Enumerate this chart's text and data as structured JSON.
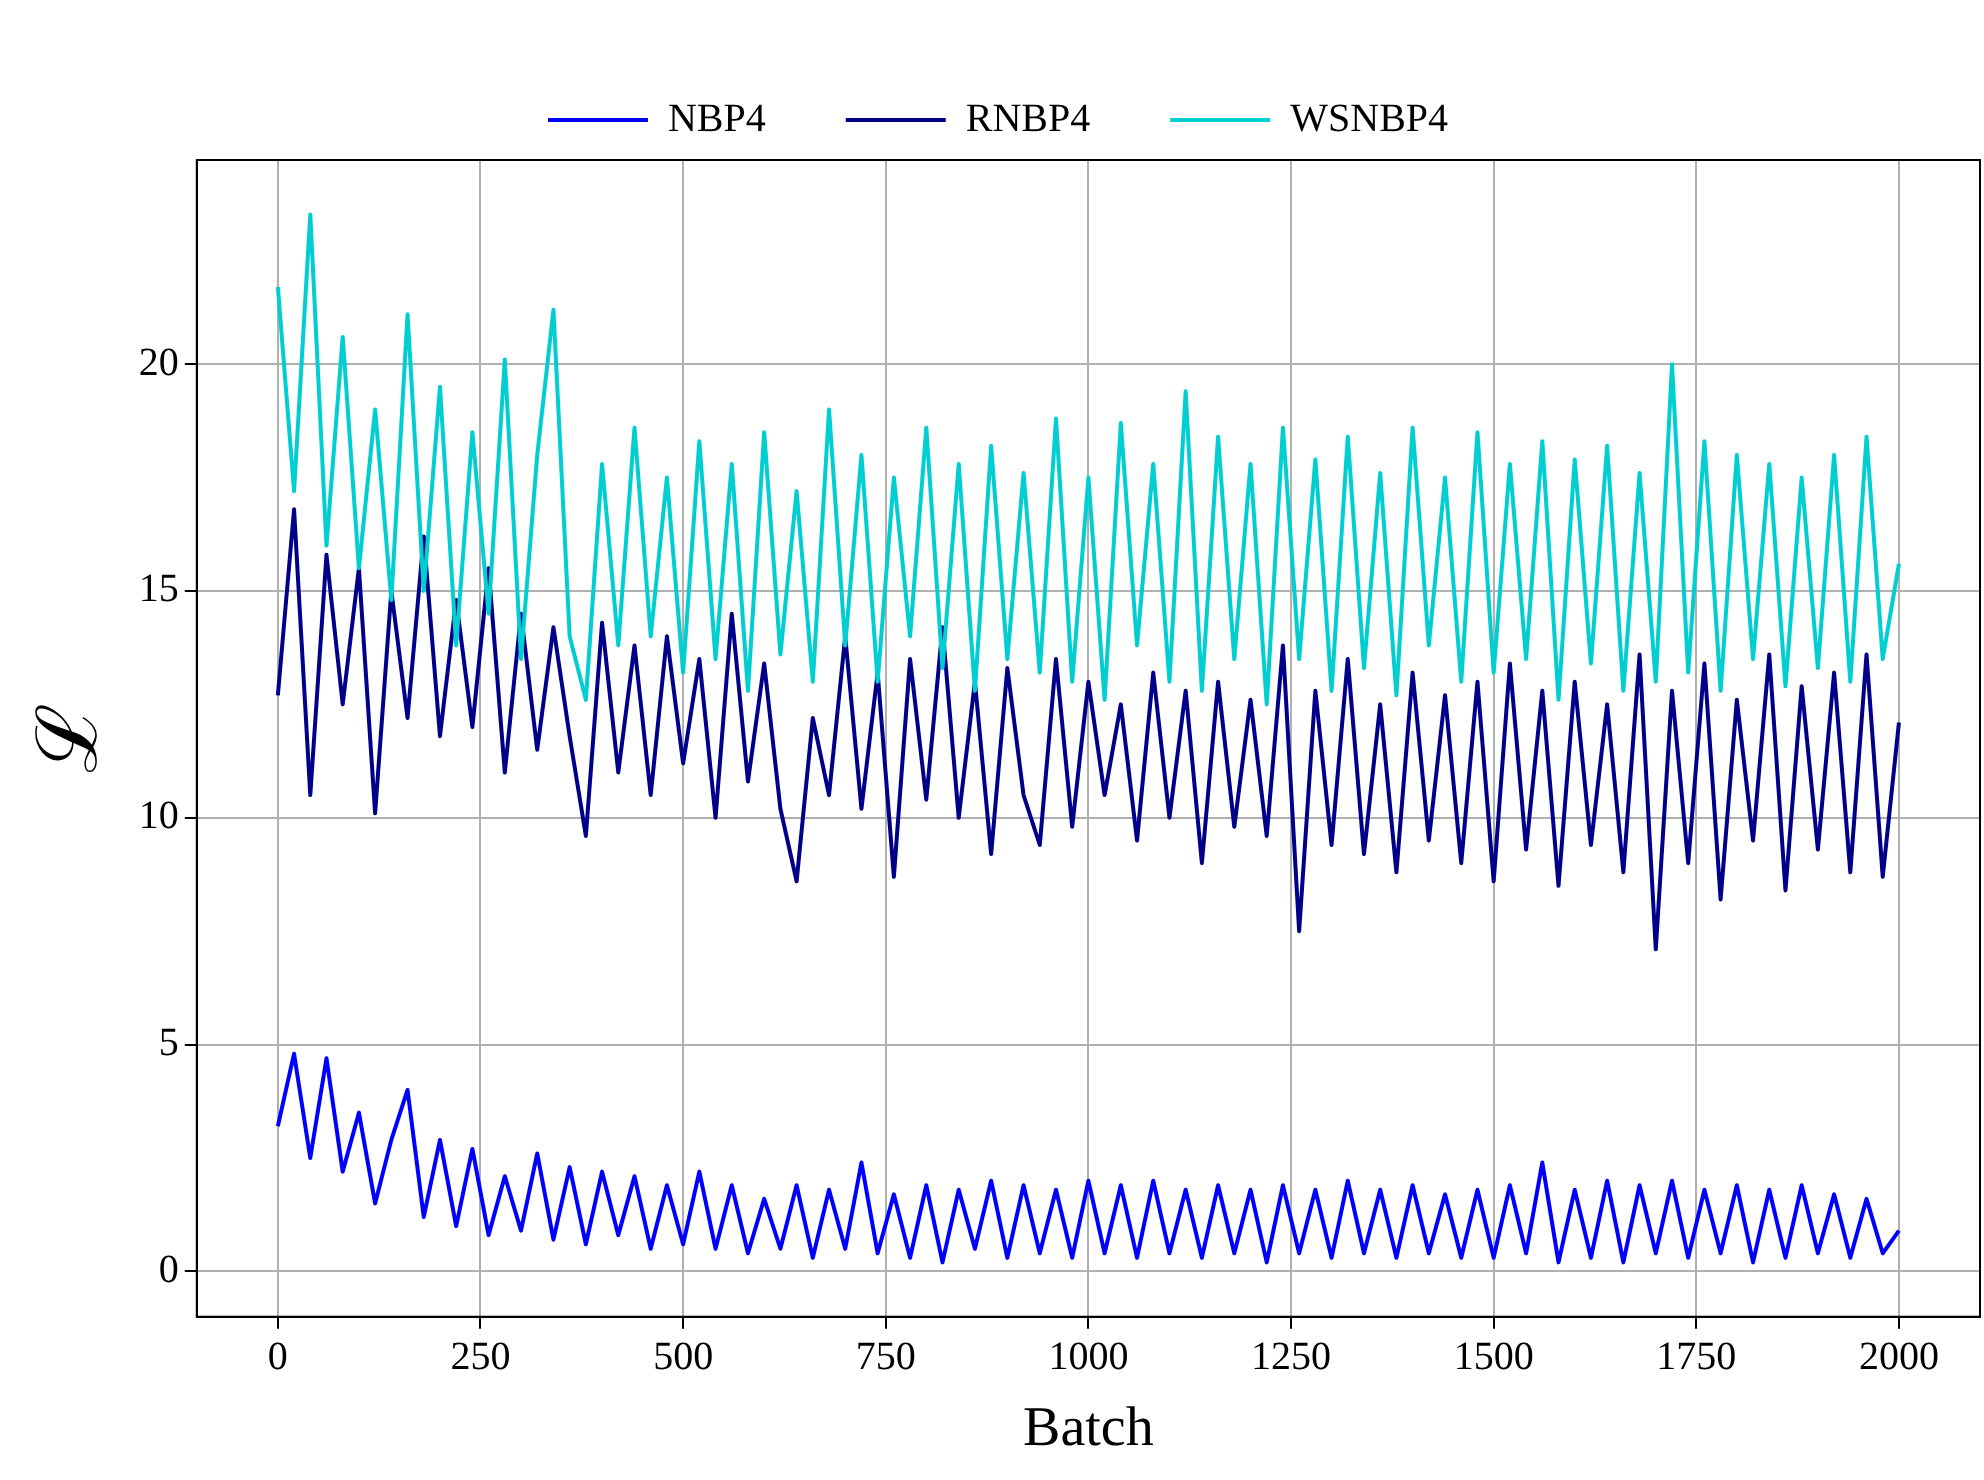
{
  "chart_data": {
    "type": "line",
    "xlabel": "Batch",
    "ylabel": "ℒ",
    "legend": "top",
    "grid": true,
    "xlim": [
      -100,
      2100
    ],
    "ylim": [
      -1,
      24.5
    ],
    "xticks": [
      0,
      250,
      500,
      750,
      1000,
      1250,
      1500,
      1750,
      2000
    ],
    "yticks": [
      0,
      5,
      10,
      15,
      20
    ],
    "x": [
      0,
      20,
      40,
      60,
      80,
      100,
      120,
      140,
      160,
      180,
      200,
      220,
      240,
      260,
      280,
      300,
      320,
      340,
      360,
      380,
      400,
      420,
      440,
      460,
      480,
      500,
      520,
      540,
      560,
      580,
      600,
      620,
      640,
      660,
      680,
      700,
      720,
      740,
      760,
      780,
      800,
      820,
      840,
      860,
      880,
      900,
      920,
      940,
      960,
      980,
      1000,
      1020,
      1040,
      1060,
      1080,
      1100,
      1120,
      1140,
      1160,
      1180,
      1200,
      1220,
      1240,
      1260,
      1280,
      1300,
      1320,
      1340,
      1360,
      1380,
      1400,
      1420,
      1440,
      1460,
      1480,
      1500,
      1520,
      1540,
      1560,
      1580,
      1600,
      1620,
      1640,
      1660,
      1680,
      1700,
      1720,
      1740,
      1760,
      1780,
      1800,
      1820,
      1840,
      1860,
      1880,
      1900,
      1920,
      1940,
      1960,
      1980,
      2000
    ],
    "series": [
      {
        "name": "NBP4",
        "color": "#0000ff",
        "values": [
          3.2,
          4.8,
          2.5,
          4.7,
          2.2,
          3.5,
          1.5,
          2.9,
          4.0,
          1.2,
          2.9,
          1.0,
          2.7,
          0.8,
          2.1,
          0.9,
          2.6,
          0.7,
          2.3,
          0.6,
          2.2,
          0.8,
          2.1,
          0.5,
          1.9,
          0.6,
          2.2,
          0.5,
          1.9,
          0.4,
          1.6,
          0.5,
          1.9,
          0.3,
          1.8,
          0.5,
          2.4,
          0.4,
          1.7,
          0.3,
          1.9,
          0.2,
          1.8,
          0.5,
          2.0,
          0.3,
          1.9,
          0.4,
          1.8,
          0.3,
          2.0,
          0.4,
          1.9,
          0.3,
          2.0,
          0.4,
          1.8,
          0.3,
          1.9,
          0.4,
          1.8,
          0.2,
          1.9,
          0.4,
          1.8,
          0.3,
          2.0,
          0.4,
          1.8,
          0.3,
          1.9,
          0.4,
          1.7,
          0.3,
          1.8,
          0.3,
          1.9,
          0.4,
          2.4,
          0.2,
          1.8,
          0.3,
          2.0,
          0.2,
          1.9,
          0.4,
          2.0,
          0.3,
          1.8,
          0.4,
          1.9,
          0.2,
          1.8,
          0.3,
          1.9,
          0.4,
          1.7,
          0.3,
          1.6,
          0.4,
          0.9
        ]
      },
      {
        "name": "RNBP4",
        "color": "#00008b",
        "values": [
          12.7,
          16.8,
          10.5,
          15.8,
          12.5,
          15.5,
          10.1,
          15.0,
          12.2,
          16.2,
          11.8,
          14.8,
          12.0,
          15.5,
          11.0,
          14.5,
          11.5,
          14.2,
          11.8,
          9.6,
          14.3,
          11.0,
          13.8,
          10.5,
          14.0,
          11.2,
          13.5,
          10.0,
          14.5,
          10.8,
          13.4,
          10.2,
          8.6,
          12.2,
          10.5,
          14.0,
          10.2,
          13.2,
          8.7,
          13.5,
          10.4,
          14.2,
          10.0,
          13.0,
          9.2,
          13.3,
          10.5,
          9.4,
          13.5,
          9.8,
          13.0,
          10.5,
          12.5,
          9.5,
          13.2,
          10.0,
          12.8,
          9.0,
          13.0,
          9.8,
          12.6,
          9.6,
          13.8,
          7.5,
          12.8,
          9.4,
          13.5,
          9.2,
          12.5,
          8.8,
          13.2,
          9.5,
          12.7,
          9.0,
          13.0,
          8.6,
          13.4,
          9.3,
          12.8,
          8.5,
          13.0,
          9.4,
          12.5,
          8.8,
          13.6,
          7.1,
          12.8,
          9.0,
          13.4,
          8.2,
          12.6,
          9.5,
          13.6,
          8.4,
          12.9,
          9.3,
          13.2,
          8.8,
          13.6,
          8.7,
          12.1
        ]
      },
      {
        "name": "WSNBP4",
        "color": "#00ced1",
        "values": [
          21.7,
          17.2,
          23.3,
          16.0,
          20.6,
          15.5,
          19.0,
          14.8,
          21.1,
          15.0,
          19.5,
          13.8,
          18.5,
          14.5,
          20.1,
          13.5,
          18.0,
          21.2,
          14.0,
          12.6,
          17.8,
          13.8,
          18.6,
          14.0,
          17.5,
          13.2,
          18.3,
          13.5,
          17.8,
          12.8,
          18.5,
          13.6,
          17.2,
          13.0,
          19.0,
          13.8,
          18.0,
          13.0,
          17.5,
          14.0,
          18.6,
          13.3,
          17.8,
          12.8,
          18.2,
          13.5,
          17.6,
          13.2,
          18.8,
          13.0,
          17.5,
          12.6,
          18.7,
          13.8,
          17.8,
          13.0,
          19.4,
          12.8,
          18.4,
          13.5,
          17.8,
          12.5,
          18.6,
          13.5,
          17.9,
          12.8,
          18.4,
          13.3,
          17.6,
          12.7,
          18.6,
          13.8,
          17.5,
          13.0,
          18.5,
          13.2,
          17.8,
          13.5,
          18.3,
          12.6,
          17.9,
          13.4,
          18.2,
          12.8,
          17.6,
          13.0,
          20.0,
          13.2,
          18.3,
          12.8,
          18.0,
          13.5,
          17.8,
          12.9,
          17.5,
          13.3,
          18.0,
          13.0,
          18.4,
          13.5,
          15.6
        ]
      }
    ]
  }
}
